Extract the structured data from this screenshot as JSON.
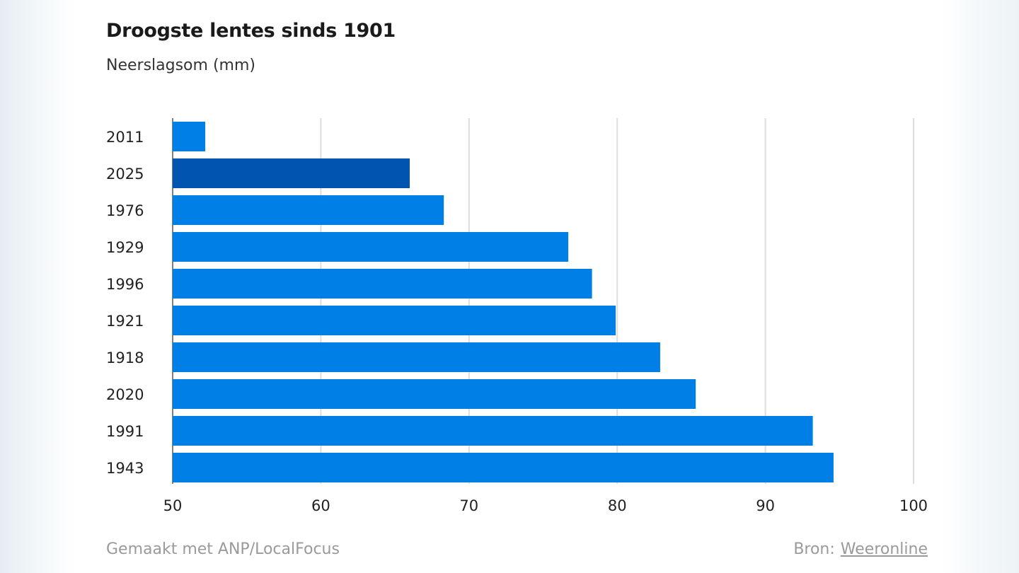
{
  "header": {
    "title": "Droogste lentes sinds 1901",
    "subtitle": "Neerslagsom (mm)"
  },
  "footer": {
    "credit": "Gemaakt met ANP/LocalFocus",
    "source_label": "Bron:",
    "source_link": "Weeronline"
  },
  "colors": {
    "bar": "#0080e6",
    "bar_highlight": "#0055b0",
    "grid": "#dddddd",
    "text": "#222222"
  },
  "chart_data": {
    "type": "bar",
    "orientation": "horizontal",
    "title": "Droogste lentes sinds 1901",
    "subtitle": "Neerslagsom (mm)",
    "categories": [
      "2011",
      "2025",
      "1976",
      "1929",
      "1996",
      "1921",
      "1918",
      "2020",
      "1991",
      "1943"
    ],
    "values": [
      52.2,
      66.0,
      68.3,
      76.7,
      78.3,
      79.9,
      82.9,
      85.3,
      93.2,
      94.6
    ],
    "highlight": "2025",
    "xlim": [
      50,
      100
    ],
    "xticks": [
      50,
      60,
      70,
      80,
      90,
      100
    ],
    "grid": true
  }
}
